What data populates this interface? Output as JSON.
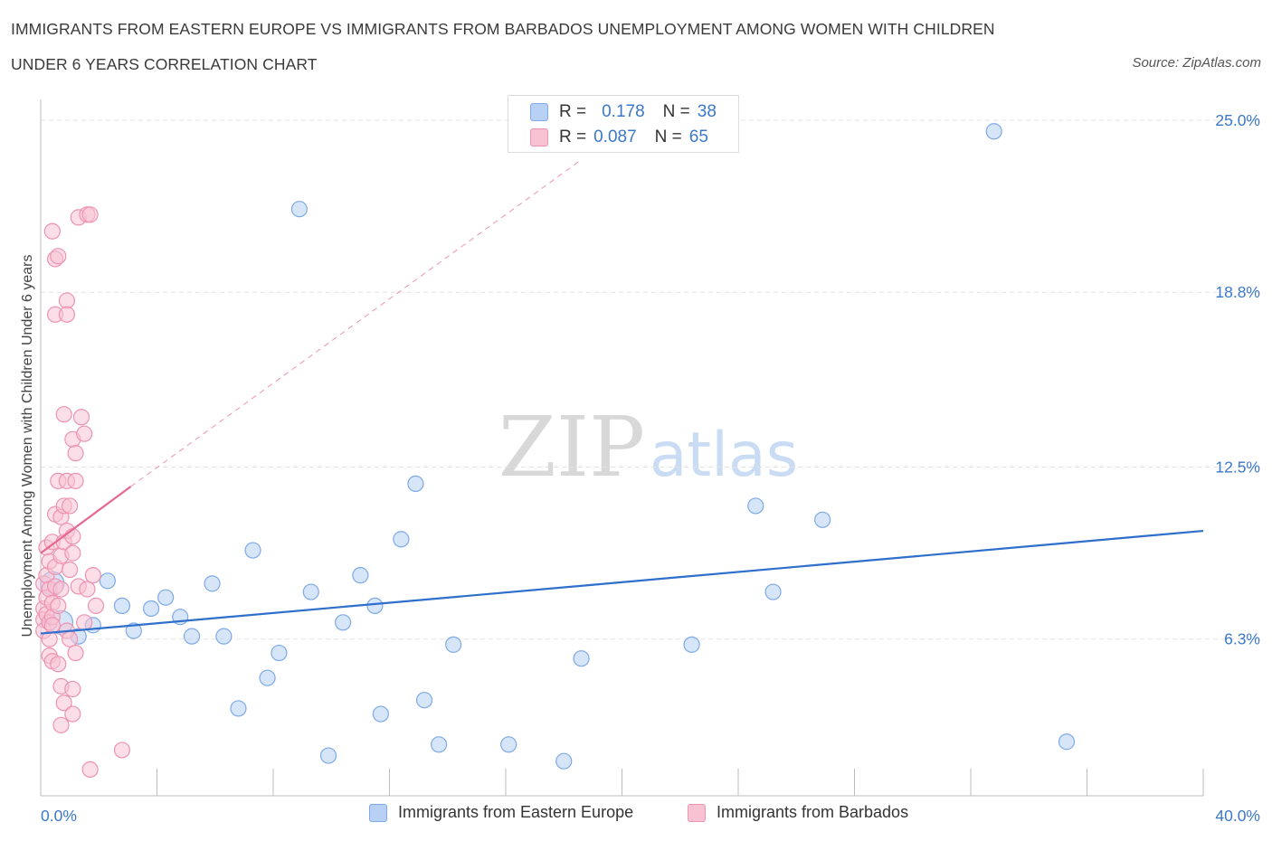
{
  "header": {
    "title_line1": "IMMIGRANTS FROM EASTERN EUROPE VS IMMIGRANTS FROM BARBADOS UNEMPLOYMENT AMONG WOMEN WITH CHILDREN",
    "title_line2": "UNDER 6 YEARS CORRELATION CHART",
    "source": "Source: ZipAtlas.com"
  },
  "watermark": {
    "zip": "ZIP",
    "atlas": "atlas"
  },
  "legend_stats": [
    {
      "r_label": "R =",
      "r_value": "0.178",
      "n_label": "N =",
      "n_value": "38"
    },
    {
      "r_label": "R =",
      "r_value": "0.087",
      "n_label": "N =",
      "n_value": "65"
    }
  ],
  "colors": {
    "blue_fill": "#b7d0f3",
    "blue_stroke": "#7eaae6",
    "blue_line": "#2e6fcc",
    "pink_fill": "#f7c3d3",
    "pink_stroke": "#ee93b1",
    "pink_line": "#e56891",
    "axis_value": "#3b78c9",
    "grid": "#e3e3e3"
  },
  "chart_data": {
    "type": "scatter",
    "title": "IMMIGRANTS FROM EASTERN EUROPE VS IMMIGRANTS FROM BARBADOS UNEMPLOYMENT AMONG WOMEN WITH CHILDREN UNDER 6 YEARS CORRELATION CHART",
    "xlabel": "",
    "ylabel": "Unemployment Among Women with Children Under 6 years",
    "xlim": [
      0,
      40
    ],
    "ylim": [
      0,
      25.5
    ],
    "x_tick_labels": [
      "0.0%",
      "40.0%"
    ],
    "y_ticks": [
      6.3,
      12.5,
      18.8,
      25.0
    ],
    "y_tick_labels": [
      "6.3%",
      "12.5%",
      "18.8%",
      "25.0%"
    ],
    "legend_position": "bottom-center",
    "series": [
      {
        "name": "Immigrants from Eastern Europe",
        "R": 0.178,
        "N": 38,
        "trend": {
          "x": [
            0,
            40
          ],
          "y": [
            6.5,
            10.2
          ]
        },
        "trend_dashed": null,
        "points": [
          {
            "x": 0.4,
            "y": 8.3,
            "big": true
          },
          {
            "x": 0.7,
            "y": 6.9,
            "big": true
          },
          {
            "x": 1.3,
            "y": 6.4
          },
          {
            "x": 1.8,
            "y": 6.8
          },
          {
            "x": 2.3,
            "y": 8.4
          },
          {
            "x": 2.8,
            "y": 7.5
          },
          {
            "x": 3.2,
            "y": 6.6
          },
          {
            "x": 3.8,
            "y": 7.4
          },
          {
            "x": 4.3,
            "y": 7.8
          },
          {
            "x": 4.8,
            "y": 7.1
          },
          {
            "x": 5.2,
            "y": 6.4
          },
          {
            "x": 5.9,
            "y": 8.3
          },
          {
            "x": 6.3,
            "y": 6.4
          },
          {
            "x": 6.8,
            "y": 3.8
          },
          {
            "x": 7.3,
            "y": 9.5
          },
          {
            "x": 7.8,
            "y": 4.9
          },
          {
            "x": 8.2,
            "y": 5.8
          },
          {
            "x": 8.9,
            "y": 21.8
          },
          {
            "x": 9.3,
            "y": 8.0
          },
          {
            "x": 9.9,
            "y": 2.1
          },
          {
            "x": 10.4,
            "y": 6.9
          },
          {
            "x": 11.0,
            "y": 8.6
          },
          {
            "x": 11.5,
            "y": 7.5
          },
          {
            "x": 11.7,
            "y": 3.6
          },
          {
            "x": 12.4,
            "y": 9.9
          },
          {
            "x": 12.9,
            "y": 11.9
          },
          {
            "x": 13.2,
            "y": 4.1
          },
          {
            "x": 13.7,
            "y": 2.5
          },
          {
            "x": 14.2,
            "y": 6.1
          },
          {
            "x": 16.1,
            "y": 2.5
          },
          {
            "x": 18.0,
            "y": 1.9
          },
          {
            "x": 18.6,
            "y": 5.6
          },
          {
            "x": 22.4,
            "y": 6.1
          },
          {
            "x": 24.6,
            "y": 11.1
          },
          {
            "x": 25.2,
            "y": 8.0
          },
          {
            "x": 26.9,
            "y": 10.6
          },
          {
            "x": 32.8,
            "y": 24.6
          },
          {
            "x": 35.3,
            "y": 2.6
          }
        ]
      },
      {
        "name": "Immigrants from Barbados",
        "R": 0.087,
        "N": 65,
        "trend": {
          "x": [
            0,
            3.1
          ],
          "y": [
            9.4,
            11.8
          ]
        },
        "trend_dashed": {
          "x": [
            3.1,
            18.5
          ],
          "y": [
            11.8,
            23.5
          ]
        },
        "points": [
          {
            "x": 0.1,
            "y": 8.3
          },
          {
            "x": 0.1,
            "y": 7.4
          },
          {
            "x": 0.1,
            "y": 7.0
          },
          {
            "x": 0.1,
            "y": 6.6
          },
          {
            "x": 0.2,
            "y": 9.6
          },
          {
            "x": 0.2,
            "y": 8.6
          },
          {
            "x": 0.2,
            "y": 7.8
          },
          {
            "x": 0.2,
            "y": 7.2
          },
          {
            "x": 0.3,
            "y": 9.1
          },
          {
            "x": 0.3,
            "y": 8.1
          },
          {
            "x": 0.3,
            "y": 6.9
          },
          {
            "x": 0.3,
            "y": 6.3
          },
          {
            "x": 0.3,
            "y": 5.7
          },
          {
            "x": 0.4,
            "y": 9.8
          },
          {
            "x": 0.4,
            "y": 7.6
          },
          {
            "x": 0.4,
            "y": 7.1
          },
          {
            "x": 0.4,
            "y": 6.8
          },
          {
            "x": 0.4,
            "y": 5.5
          },
          {
            "x": 0.5,
            "y": 10.8
          },
          {
            "x": 0.5,
            "y": 8.9
          },
          {
            "x": 0.5,
            "y": 8.2
          },
          {
            "x": 0.6,
            "y": 12.0
          },
          {
            "x": 0.6,
            "y": 7.5
          },
          {
            "x": 0.6,
            "y": 5.4
          },
          {
            "x": 0.4,
            "y": 21.0
          },
          {
            "x": 0.5,
            "y": 18.0
          },
          {
            "x": 0.5,
            "y": 20.0
          },
          {
            "x": 0.6,
            "y": 20.1
          },
          {
            "x": 0.7,
            "y": 10.7
          },
          {
            "x": 0.7,
            "y": 9.3
          },
          {
            "x": 0.7,
            "y": 8.1
          },
          {
            "x": 0.7,
            "y": 4.6
          },
          {
            "x": 0.7,
            "y": 3.2
          },
          {
            "x": 0.8,
            "y": 14.4
          },
          {
            "x": 0.8,
            "y": 11.1
          },
          {
            "x": 0.8,
            "y": 9.8
          },
          {
            "x": 0.8,
            "y": 4.0
          },
          {
            "x": 0.9,
            "y": 12.0
          },
          {
            "x": 0.9,
            "y": 10.2
          },
          {
            "x": 0.9,
            "y": 6.6
          },
          {
            "x": 0.9,
            "y": 18.5
          },
          {
            "x": 0.9,
            "y": 18.0
          },
          {
            "x": 1.0,
            "y": 11.1
          },
          {
            "x": 1.0,
            "y": 6.3
          },
          {
            "x": 1.0,
            "y": 8.8
          },
          {
            "x": 1.1,
            "y": 13.5
          },
          {
            "x": 1.1,
            "y": 9.4
          },
          {
            "x": 1.1,
            "y": 10.0
          },
          {
            "x": 1.1,
            "y": 4.5
          },
          {
            "x": 1.2,
            "y": 12.0
          },
          {
            "x": 1.2,
            "y": 5.8
          },
          {
            "x": 1.2,
            "y": 13.0
          },
          {
            "x": 1.3,
            "y": 8.2
          },
          {
            "x": 1.1,
            "y": 3.6
          },
          {
            "x": 1.3,
            "y": 21.5
          },
          {
            "x": 1.4,
            "y": 14.3
          },
          {
            "x": 1.5,
            "y": 13.7
          },
          {
            "x": 1.5,
            "y": 6.9
          },
          {
            "x": 1.6,
            "y": 8.1
          },
          {
            "x": 1.6,
            "y": 21.6
          },
          {
            "x": 1.7,
            "y": 21.6
          },
          {
            "x": 1.7,
            "y": 1.6
          },
          {
            "x": 1.8,
            "y": 8.6
          },
          {
            "x": 1.9,
            "y": 7.5
          },
          {
            "x": 2.8,
            "y": 2.3
          }
        ]
      }
    ]
  },
  "legend_bottom": [
    {
      "label": "Immigrants from Eastern Europe"
    },
    {
      "label": "Immigrants from Barbados"
    }
  ]
}
